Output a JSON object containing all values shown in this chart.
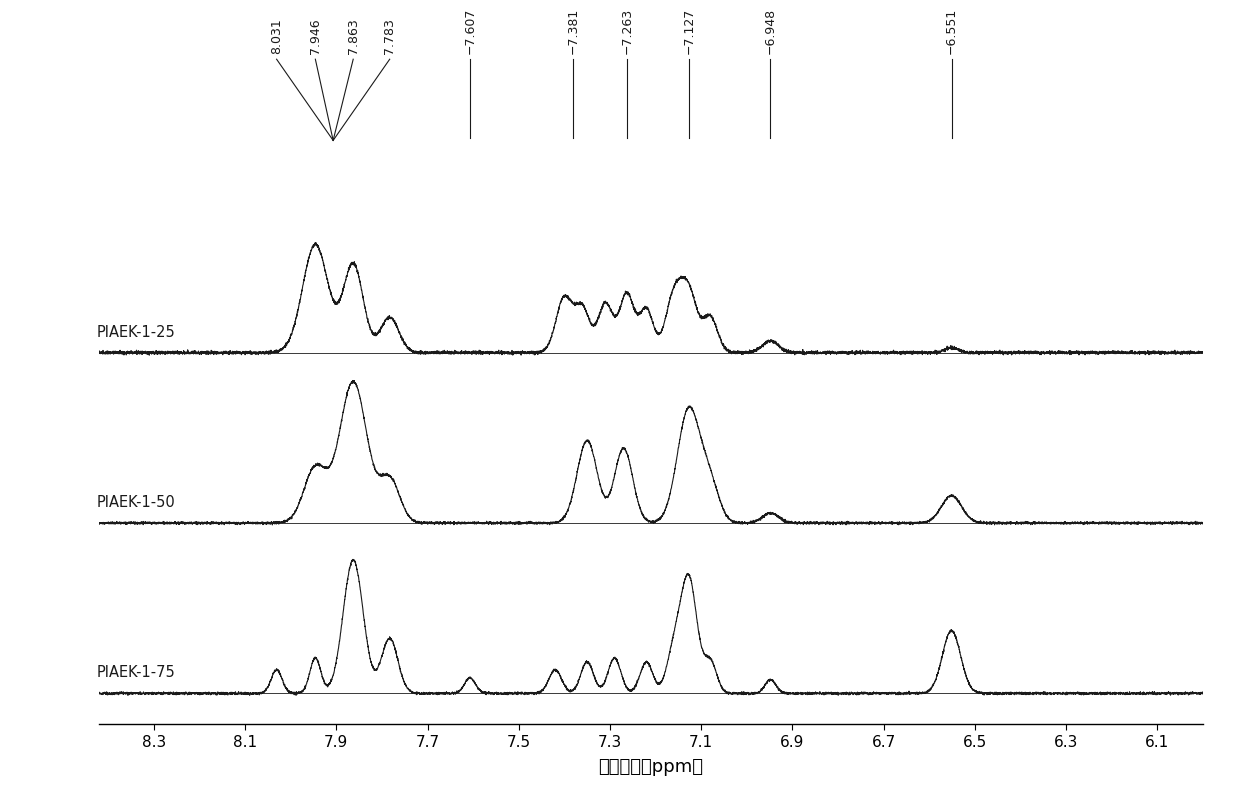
{
  "xlabel": "化学位移（ppm）",
  "xticks": [
    8.3,
    8.1,
    7.9,
    7.7,
    7.5,
    7.3,
    7.1,
    6.9,
    6.7,
    6.5,
    6.3,
    6.1
  ],
  "xlim_min": 6.0,
  "xlim_max": 8.42,
  "peak_labels_group": [
    8.031,
    7.946,
    7.863,
    7.783
  ],
  "peak_labels_single": [
    7.607,
    7.381,
    7.263,
    7.127,
    6.948,
    6.551
  ],
  "spectra_labels": [
    "PIAEK-1-25",
    "PIAEK-1-50",
    "PIAEK-1-75"
  ],
  "background_color": "#ffffff",
  "line_color": "#1a1a1a"
}
